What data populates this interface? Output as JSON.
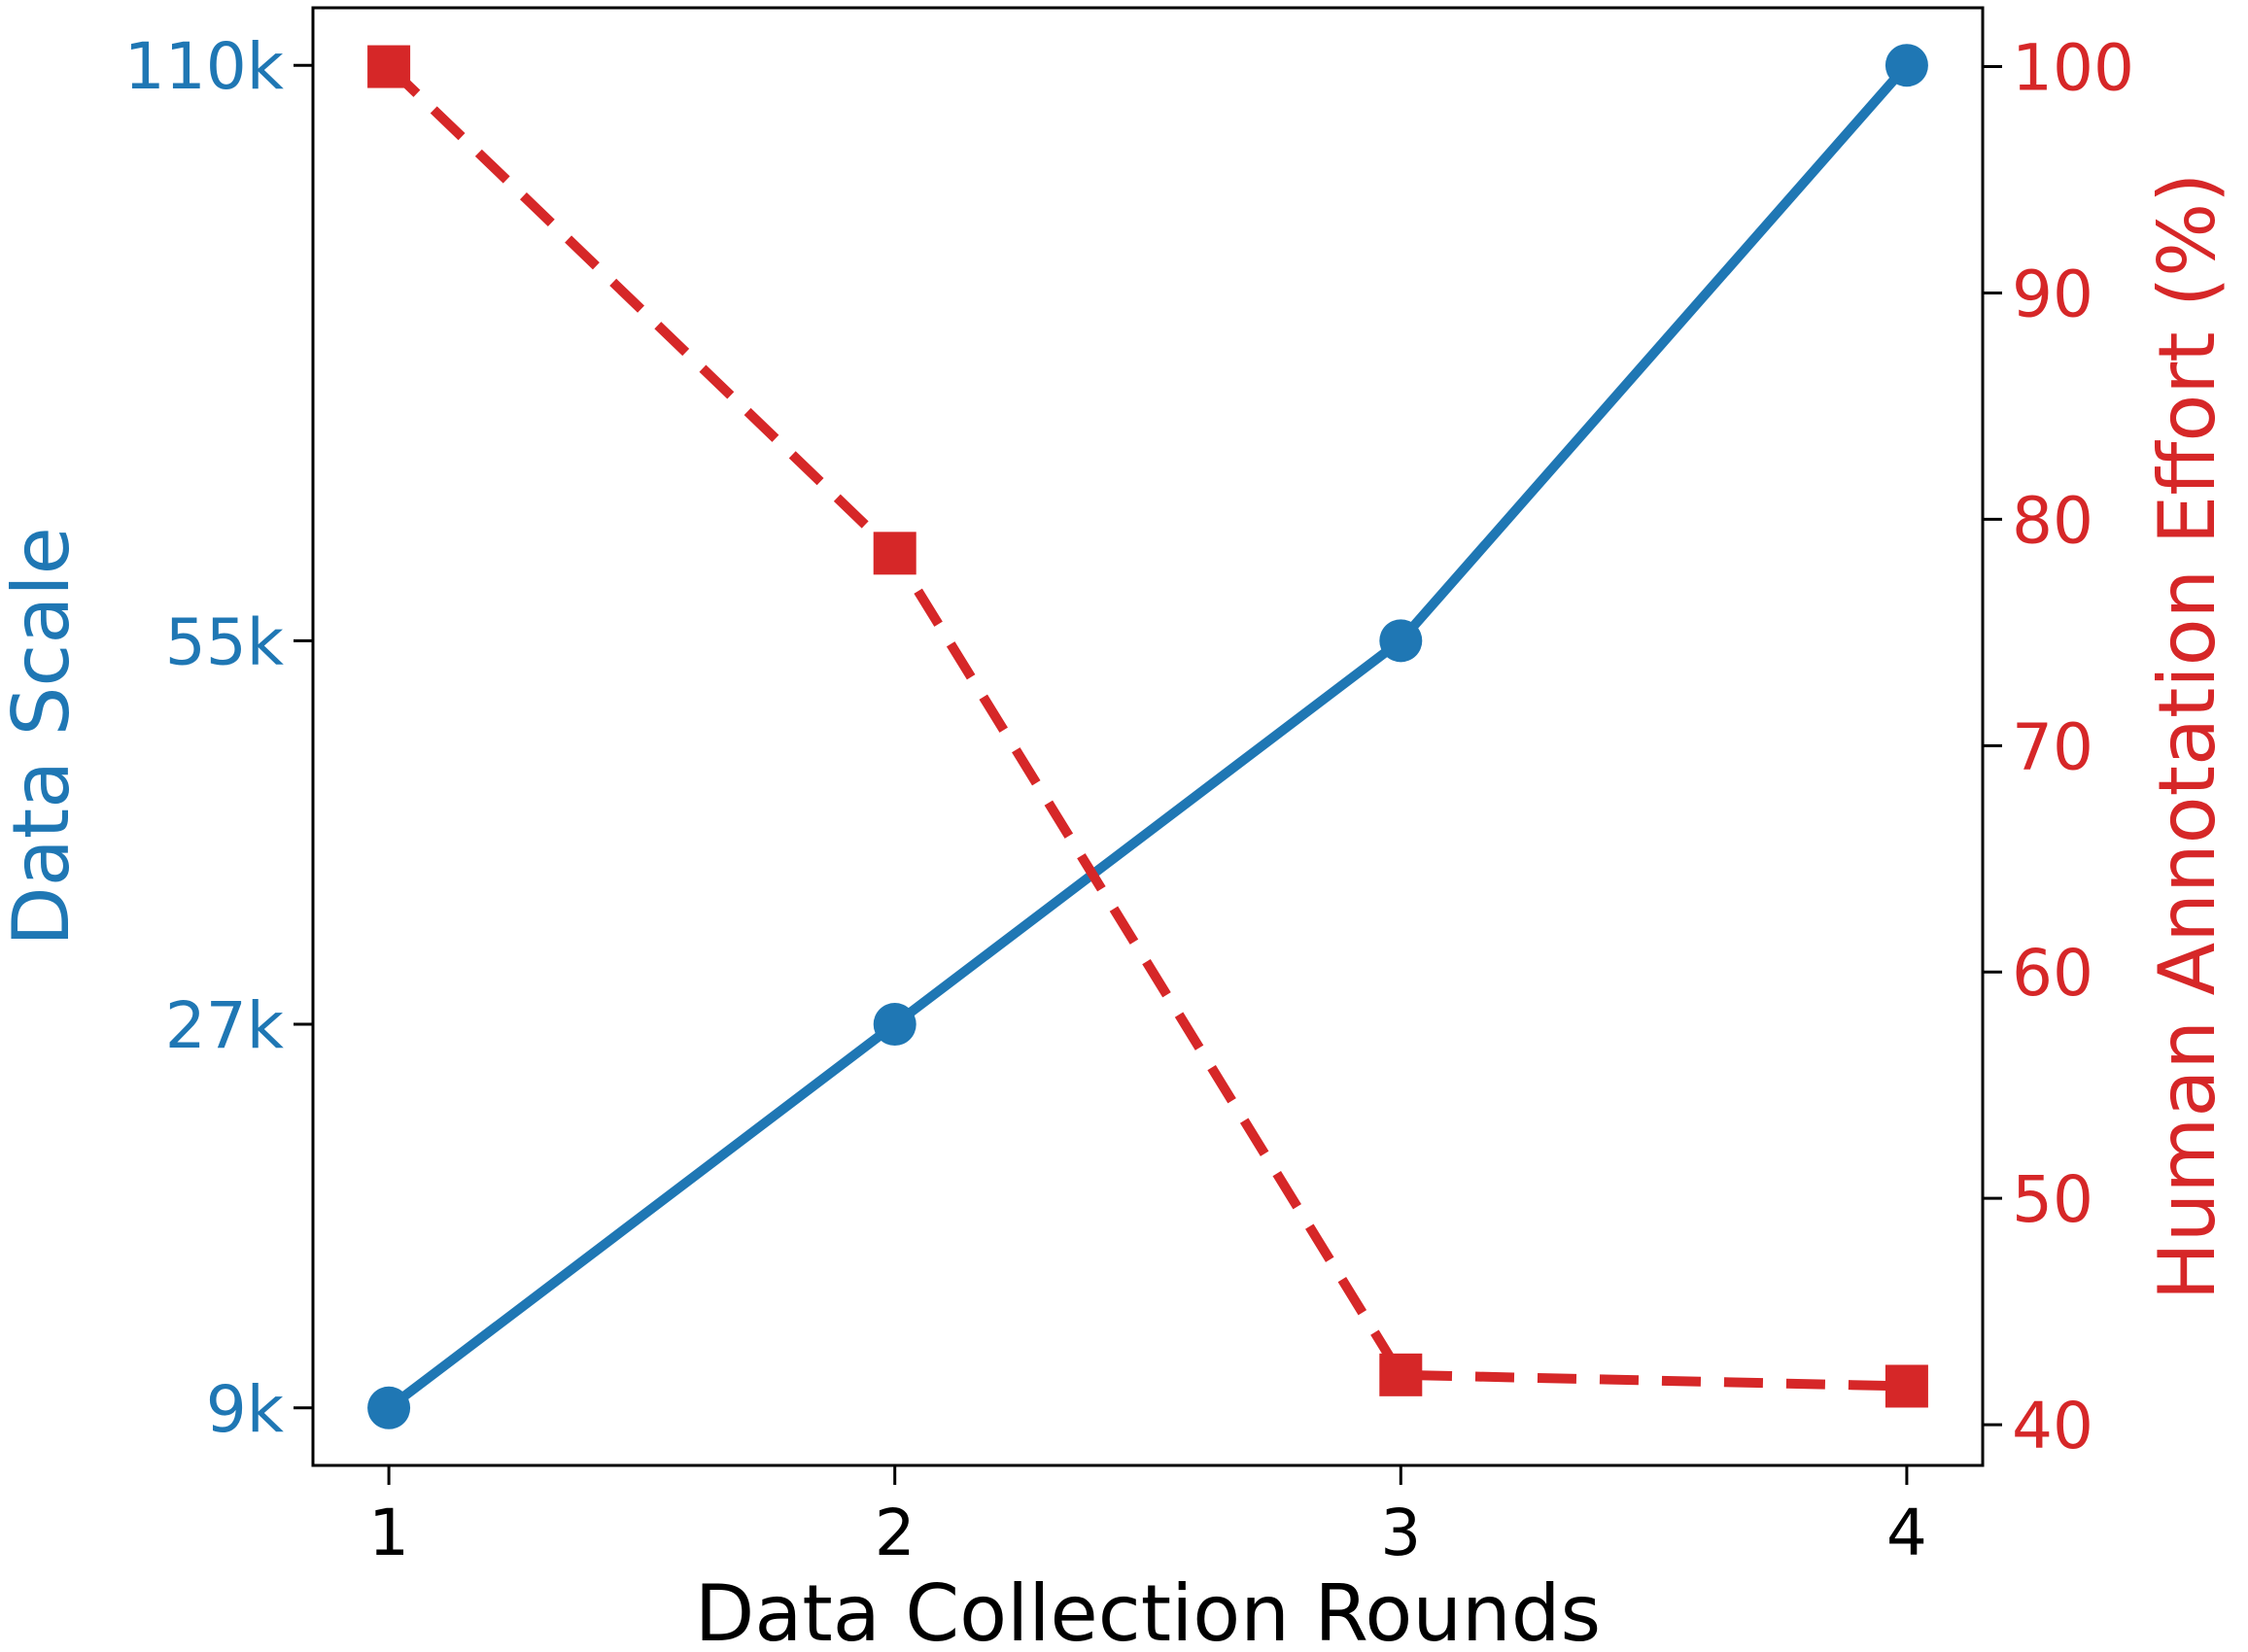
{
  "chart_data": {
    "type": "line",
    "title": "",
    "xlabel": "Data Collection Rounds",
    "ylabel_left": "Data Scale",
    "ylabel_right": "Human Annotation Effort (%)",
    "x": [
      1,
      2,
      3,
      4
    ],
    "xticks": [
      "1",
      "2",
      "3",
      "4"
    ],
    "xlim": [
      0.85,
      4.15
    ],
    "left_axis": {
      "ticks": [
        9000,
        27000,
        55000,
        110000
      ],
      "tick_labels": [
        "9k",
        "27k",
        "55k",
        "110k"
      ],
      "tick_rows": [
        0,
        1,
        2,
        3.5
      ],
      "row_range": [
        -0.15,
        3.65
      ],
      "color": "#1f77b4"
    },
    "right_axis": {
      "ticks": [
        40,
        50,
        60,
        70,
        80,
        90,
        100
      ],
      "tick_labels": [
        "40",
        "50",
        "60",
        "70",
        "80",
        "90",
        "100"
      ],
      "ylim": [
        38.2,
        102.6
      ],
      "color": "#d62728"
    },
    "series": [
      {
        "axis": "left",
        "values": [
          9000,
          27000,
          55000,
          110000
        ],
        "style": "solid",
        "marker": "circle",
        "color": "#1f77b4"
      },
      {
        "axis": "right",
        "values": [
          100,
          78.5,
          42.2,
          41.7
        ],
        "style": "dashed",
        "marker": "square",
        "color": "#d62728"
      }
    ],
    "grid": false,
    "legend": "none"
  }
}
